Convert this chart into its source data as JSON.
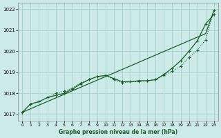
{
  "title": "Graphe pression niveau de la mer (hPa)",
  "bg_color": "#cceae8",
  "grid_color": "#aad4d2",
  "line_color": "#1a5c2a",
  "x_ticks": [
    0,
    1,
    2,
    3,
    4,
    5,
    6,
    7,
    8,
    9,
    10,
    11,
    12,
    13,
    14,
    15,
    16,
    17,
    18,
    19,
    20,
    21,
    22,
    23
  ],
  "ylim": [
    1016.7,
    1022.3
  ],
  "y_ticks": [
    1017,
    1018,
    1019,
    1020,
    1021,
    1022
  ],
  "series_dotted": [
    1017.1,
    1017.5,
    1017.6,
    1017.8,
    1018.0,
    1018.1,
    1018.25,
    1018.5,
    1018.65,
    1018.8,
    1018.85,
    1018.65,
    1018.5,
    1018.55,
    1018.55,
    1018.6,
    1018.65,
    1018.85,
    1019.05,
    1019.3,
    1019.7,
    1020.05,
    1020.55,
    1021.95
  ],
  "series_smooth": [
    1017.1,
    1017.5,
    1017.6,
    1017.8,
    1017.9,
    1018.0,
    1018.2,
    1018.45,
    1018.65,
    1018.8,
    1018.85,
    1018.7,
    1018.55,
    1018.55,
    1018.6,
    1018.6,
    1018.65,
    1018.9,
    1019.2,
    1019.55,
    1020.0,
    1020.5,
    1021.3,
    1021.75
  ],
  "series_straight": [
    1017.1,
    1017.27,
    1017.44,
    1017.61,
    1017.78,
    1017.95,
    1018.12,
    1018.29,
    1018.46,
    1018.63,
    1018.8,
    1018.97,
    1019.14,
    1019.31,
    1019.48,
    1019.65,
    1019.82,
    1019.99,
    1020.16,
    1020.33,
    1020.5,
    1020.67,
    1020.84,
    1021.95
  ]
}
